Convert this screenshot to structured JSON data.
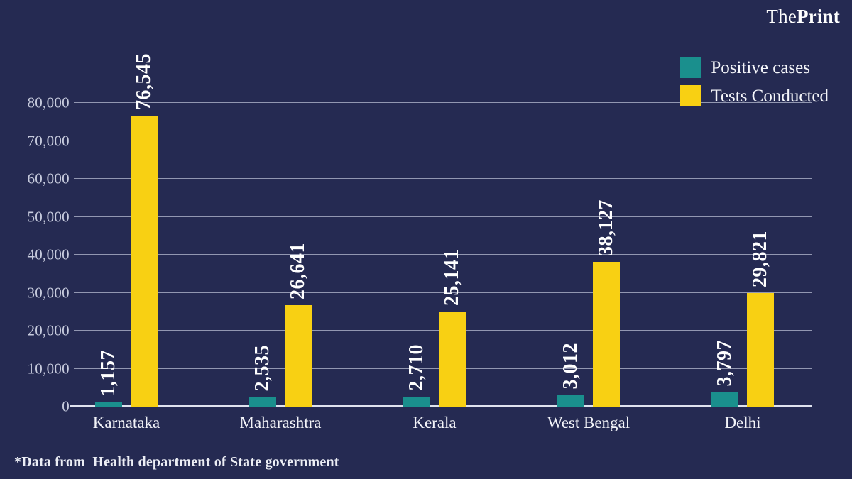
{
  "brand": {
    "the": "The",
    "print": "Print"
  },
  "footer": {
    "note": "*Data from  Health department of State government"
  },
  "colors": {
    "background": "#252a52",
    "positive": "#1a8f8d",
    "tests": "#f8d013",
    "gridline": "#d5daec",
    "text": "#ffffff"
  },
  "chart_data": {
    "type": "bar",
    "title": "",
    "xlabel": "",
    "ylabel": "",
    "categories": [
      "Karnataka",
      "Maharashtra",
      "Kerala",
      "West Bengal",
      "Delhi"
    ],
    "series": [
      {
        "name": "Positive cases",
        "color": "#1a8f8d",
        "values": [
          1157,
          2535,
          2710,
          3012,
          3797
        ]
      },
      {
        "name": "Tests Conducted",
        "color": "#f8d013",
        "values": [
          76545,
          26641,
          25141,
          38127,
          29821
        ]
      }
    ],
    "value_labels": [
      [
        "1,157",
        "2,535",
        "2,710",
        "3,012",
        "3,797"
      ],
      [
        "76,545",
        "26,641",
        "25,141",
        "38,127",
        "29,821"
      ]
    ],
    "ylim": [
      0,
      80000
    ],
    "yticks": [
      0,
      10000,
      20000,
      30000,
      40000,
      50000,
      60000,
      70000,
      80000
    ],
    "ytick_labels": [
      "0",
      "10,000",
      "20,000",
      "30,000",
      "40,000",
      "50,000",
      "60,000",
      "70,000",
      "80,000"
    ],
    "grid": true,
    "legend_position": "top-right"
  }
}
